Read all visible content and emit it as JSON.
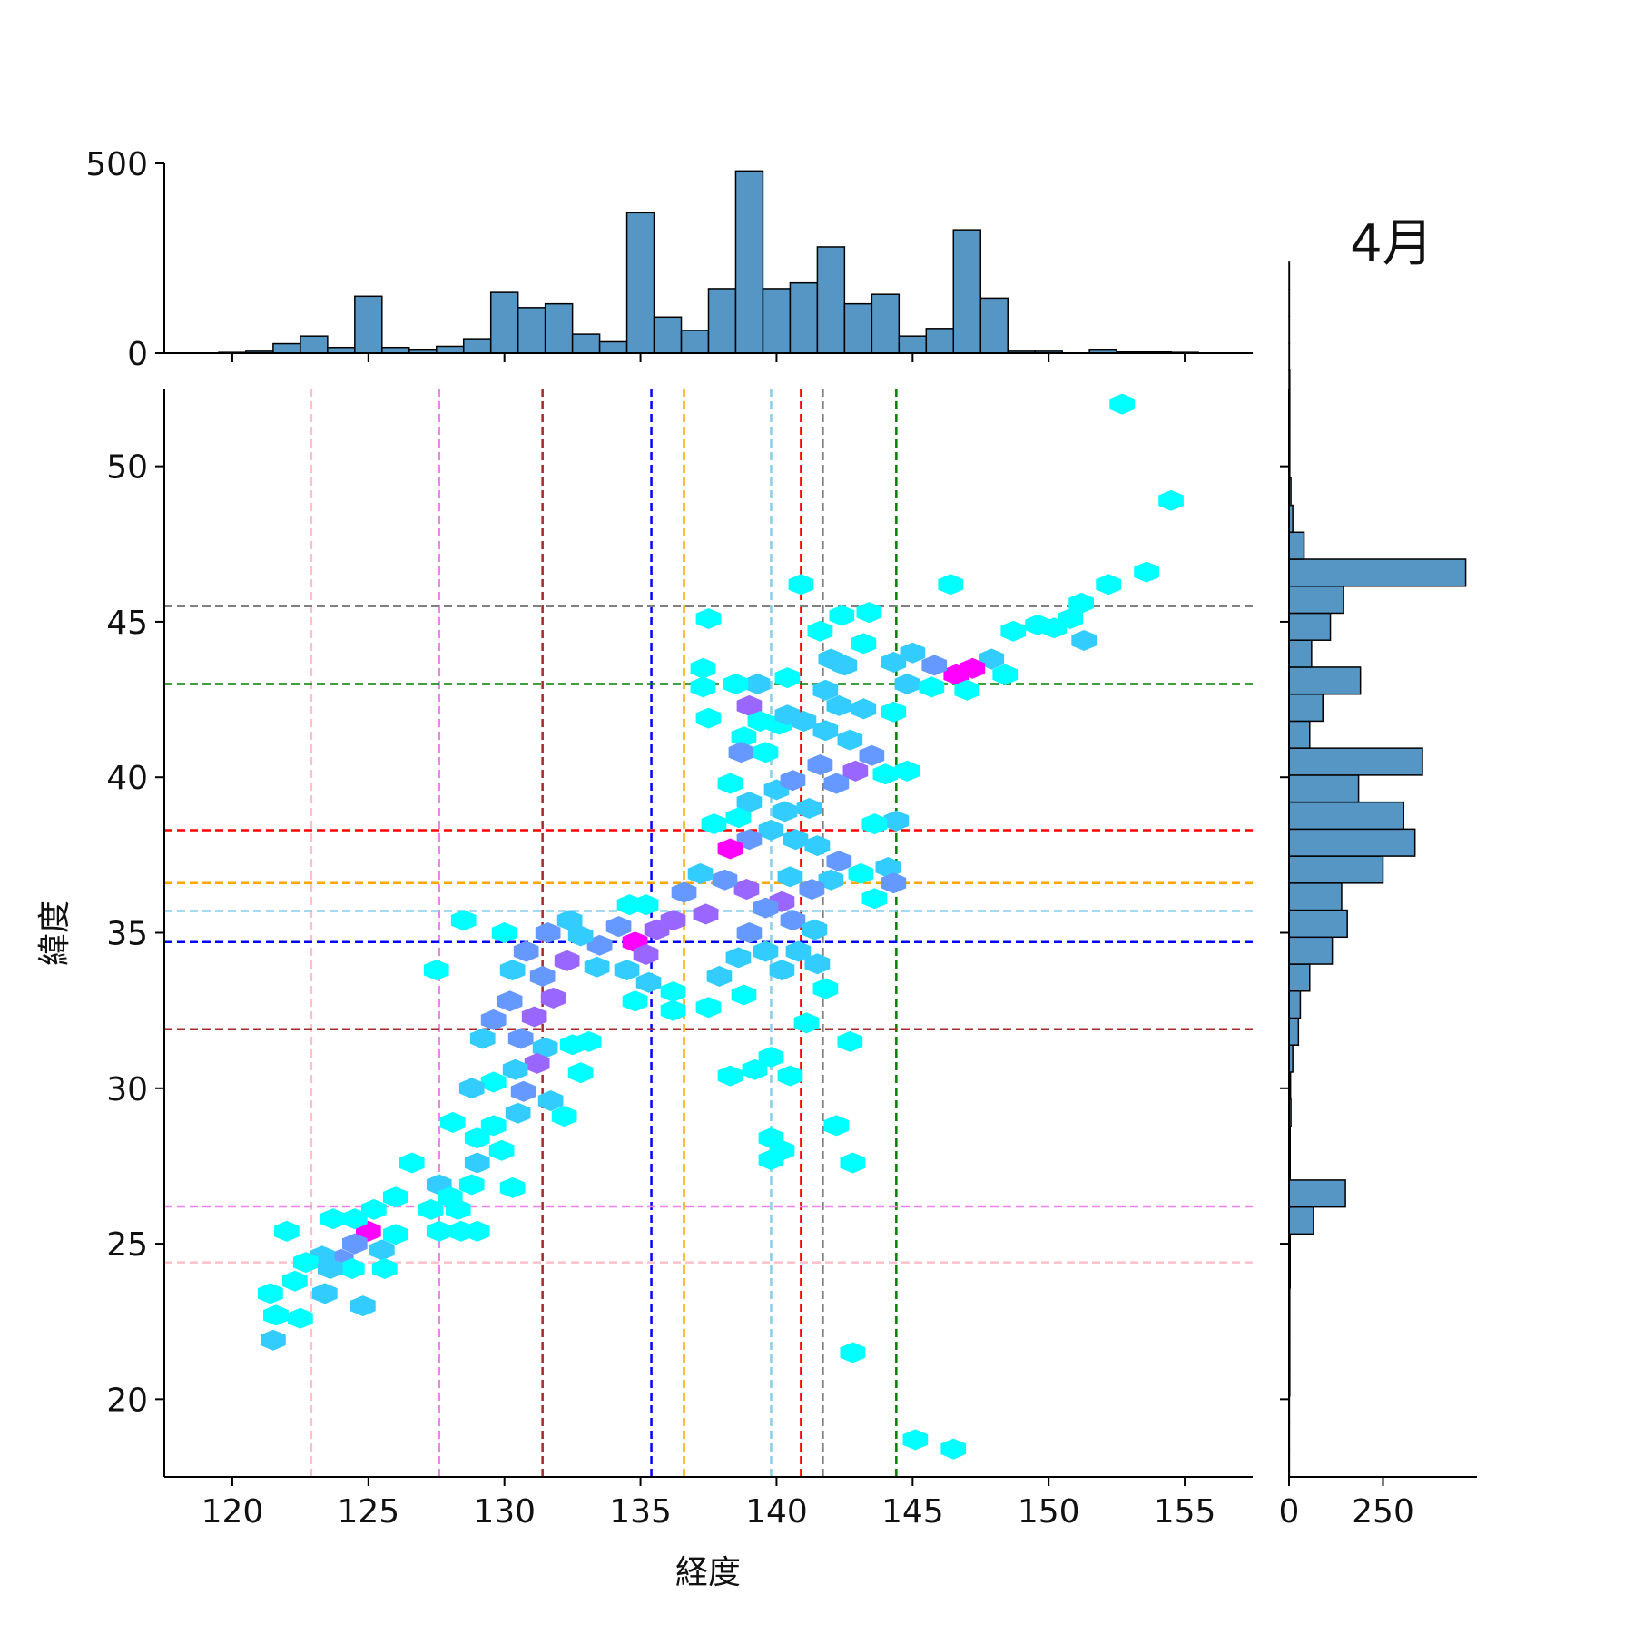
{
  "chart_data": {
    "type": "hexbin",
    "title": "",
    "annotation": "4月",
    "xlabel": "経度",
    "ylabel": "緯度",
    "xlim": [
      117.5,
      157.5
    ],
    "ylim": [
      17.5,
      52.5
    ],
    "xticks": [
      120,
      125,
      130,
      135,
      140,
      145,
      150,
      155
    ],
    "yticks": [
      20,
      25,
      30,
      35,
      40,
      45,
      50
    ],
    "hexbin_colors": [
      "#00ffff",
      "#33ccff",
      "#6699ff",
      "#9966ff",
      "#ff00ff"
    ],
    "hexbin_cells": [
      [
        152.7,
        52.0,
        1
      ],
      [
        154.5,
        48.9,
        1
      ],
      [
        153.6,
        46.6,
        1
      ],
      [
        152.2,
        46.2,
        1
      ],
      [
        151.2,
        45.6,
        1
      ],
      [
        150.8,
        45.1,
        1
      ],
      [
        150.2,
        44.8,
        1
      ],
      [
        149.6,
        44.9,
        1
      ],
      [
        151.3,
        44.4,
        2
      ],
      [
        148.7,
        44.7,
        1
      ],
      [
        147.9,
        43.8,
        2
      ],
      [
        147.2,
        43.5,
        5
      ],
      [
        146.6,
        43.3,
        5
      ],
      [
        145.8,
        43.6,
        3
      ],
      [
        145.0,
        44.0,
        2
      ],
      [
        144.3,
        43.7,
        2
      ],
      [
        144.8,
        43.0,
        2
      ],
      [
        145.7,
        42.9,
        1
      ],
      [
        147.0,
        42.8,
        1
      ],
      [
        148.4,
        43.3,
        1
      ],
      [
        146.4,
        46.2,
        1
      ],
      [
        144.3,
        42.1,
        1
      ],
      [
        144.0,
        40.1,
        1
      ],
      [
        144.8,
        40.2,
        1
      ],
      [
        144.4,
        38.6,
        2
      ],
      [
        143.6,
        38.5,
        1
      ],
      [
        143.5,
        40.7,
        3
      ],
      [
        142.9,
        40.2,
        4
      ],
      [
        142.2,
        39.8,
        3
      ],
      [
        141.6,
        40.4,
        3
      ],
      [
        141.2,
        39.0,
        2
      ],
      [
        142.7,
        41.2,
        2
      ],
      [
        141.8,
        41.5,
        2
      ],
      [
        141.0,
        41.8,
        2
      ],
      [
        142.3,
        42.3,
        2
      ],
      [
        143.2,
        42.2,
        2
      ],
      [
        141.8,
        42.8,
        2
      ],
      [
        142.5,
        43.6,
        2
      ],
      [
        143.2,
        44.3,
        1
      ],
      [
        142.0,
        43.8,
        2
      ],
      [
        141.6,
        44.7,
        1
      ],
      [
        142.4,
        45.2,
        1
      ],
      [
        143.4,
        45.3,
        1
      ],
      [
        140.9,
        46.2,
        1
      ],
      [
        140.4,
        43.2,
        1
      ],
      [
        139.3,
        43.0,
        2
      ],
      [
        139.0,
        42.3,
        4
      ],
      [
        138.8,
        41.3,
        1
      ],
      [
        138.7,
        40.8,
        3
      ],
      [
        139.6,
        40.8,
        1
      ],
      [
        140.1,
        41.7,
        1
      ],
      [
        140.4,
        42.0,
        2
      ],
      [
        139.4,
        41.8,
        1
      ],
      [
        138.3,
        39.8,
        1
      ],
      [
        139.0,
        39.2,
        2
      ],
      [
        138.6,
        38.7,
        1
      ],
      [
        137.7,
        38.5,
        1
      ],
      [
        140.0,
        39.6,
        2
      ],
      [
        140.6,
        39.9,
        3
      ],
      [
        140.3,
        38.9,
        2
      ],
      [
        139.8,
        38.3,
        2
      ],
      [
        139.0,
        38.0,
        3
      ],
      [
        138.3,
        37.7,
        5
      ],
      [
        140.7,
        38.0,
        2
      ],
      [
        141.5,
        37.8,
        2
      ],
      [
        142.3,
        37.3,
        3
      ],
      [
        143.1,
        36.9,
        1
      ],
      [
        144.1,
        37.1,
        2
      ],
      [
        144.3,
        36.6,
        3
      ],
      [
        143.6,
        36.1,
        1
      ],
      [
        142.0,
        36.7,
        2
      ],
      [
        141.3,
        36.4,
        3
      ],
      [
        140.5,
        36.8,
        2
      ],
      [
        140.2,
        36.0,
        4
      ],
      [
        139.6,
        35.8,
        3
      ],
      [
        138.9,
        36.4,
        4
      ],
      [
        138.1,
        36.7,
        3
      ],
      [
        137.2,
        36.9,
        2
      ],
      [
        136.6,
        36.3,
        3
      ],
      [
        137.4,
        35.6,
        4
      ],
      [
        136.2,
        35.4,
        4
      ],
      [
        135.6,
        35.1,
        4
      ],
      [
        134.8,
        34.7,
        5
      ],
      [
        135.2,
        34.3,
        4
      ],
      [
        134.2,
        35.2,
        3
      ],
      [
        133.5,
        34.6,
        3
      ],
      [
        132.8,
        34.9,
        2
      ],
      [
        133.4,
        33.9,
        2
      ],
      [
        134.5,
        33.8,
        2
      ],
      [
        135.3,
        33.4,
        2
      ],
      [
        136.2,
        33.1,
        1
      ],
      [
        134.8,
        32.8,
        1
      ],
      [
        137.9,
        33.6,
        2
      ],
      [
        138.6,
        34.2,
        2
      ],
      [
        137.5,
        32.6,
        1
      ],
      [
        136.2,
        32.5,
        1
      ],
      [
        139.0,
        35.0,
        3
      ],
      [
        140.6,
        35.4,
        3
      ],
      [
        141.4,
        35.1,
        2
      ],
      [
        140.8,
        34.4,
        2
      ],
      [
        141.5,
        34.0,
        2
      ],
      [
        140.2,
        33.8,
        2
      ],
      [
        139.6,
        34.4,
        2
      ],
      [
        138.8,
        33.0,
        1
      ],
      [
        141.8,
        33.2,
        1
      ],
      [
        141.1,
        32.1,
        1
      ],
      [
        142.7,
        31.5,
        1
      ],
      [
        139.8,
        31.0,
        1
      ],
      [
        139.2,
        30.6,
        1
      ],
      [
        138.3,
        30.4,
        1
      ],
      [
        140.5,
        30.4,
        1
      ],
      [
        142.2,
        28.8,
        1
      ],
      [
        139.8,
        28.4,
        1
      ],
      [
        140.2,
        28.0,
        1
      ],
      [
        139.8,
        27.7,
        1
      ],
      [
        142.8,
        27.6,
        1
      ],
      [
        142.8,
        21.5,
        1
      ],
      [
        145.1,
        18.7,
        1
      ],
      [
        146.5,
        18.4,
        1
      ],
      [
        132.4,
        35.4,
        2
      ],
      [
        131.6,
        35.0,
        3
      ],
      [
        130.8,
        34.4,
        3
      ],
      [
        130.3,
        33.8,
        2
      ],
      [
        131.4,
        33.6,
        3
      ],
      [
        132.3,
        34.1,
        4
      ],
      [
        131.8,
        32.9,
        4
      ],
      [
        131.1,
        32.3,
        4
      ],
      [
        130.2,
        32.8,
        3
      ],
      [
        129.6,
        32.2,
        3
      ],
      [
        130.6,
        31.6,
        3
      ],
      [
        131.5,
        31.3,
        2
      ],
      [
        132.5,
        31.4,
        1
      ],
      [
        131.2,
        30.8,
        4
      ],
      [
        130.4,
        30.6,
        2
      ],
      [
        129.6,
        30.2,
        1
      ],
      [
        130.7,
        29.9,
        3
      ],
      [
        131.7,
        29.6,
        2
      ],
      [
        130.5,
        29.2,
        2
      ],
      [
        129.6,
        28.8,
        1
      ],
      [
        132.2,
        29.1,
        1
      ],
      [
        133.1,
        31.5,
        1
      ],
      [
        132.8,
        30.5,
        1
      ],
      [
        128.5,
        35.4,
        1
      ],
      [
        130.0,
        35.0,
        1
      ],
      [
        127.5,
        33.8,
        1
      ],
      [
        129.2,
        31.6,
        2
      ],
      [
        128.8,
        30.0,
        2
      ],
      [
        128.1,
        28.9,
        1
      ],
      [
        129.0,
        28.4,
        1
      ],
      [
        129.9,
        28.0,
        1
      ],
      [
        129.0,
        27.6,
        2
      ],
      [
        128.8,
        26.9,
        1
      ],
      [
        126.6,
        27.6,
        1
      ],
      [
        126.0,
        26.5,
        1
      ],
      [
        127.6,
        26.9,
        2
      ],
      [
        127.3,
        26.1,
        1
      ],
      [
        128.3,
        26.1,
        1
      ],
      [
        127.6,
        25.4,
        1
      ],
      [
        128.4,
        25.4,
        1
      ],
      [
        129.0,
        25.4,
        1
      ],
      [
        128.0,
        26.5,
        1
      ],
      [
        130.3,
        26.8,
        1
      ],
      [
        125.0,
        25.4,
        5
      ],
      [
        124.5,
        25.0,
        3
      ],
      [
        125.5,
        24.8,
        2
      ],
      [
        124.0,
        24.5,
        3
      ],
      [
        123.3,
        24.6,
        2
      ],
      [
        122.7,
        24.4,
        1
      ],
      [
        124.4,
        24.2,
        1
      ],
      [
        123.6,
        24.2,
        2
      ],
      [
        126.0,
        25.3,
        1
      ],
      [
        125.2,
        26.1,
        1
      ],
      [
        123.7,
        25.8,
        1
      ],
      [
        124.5,
        25.8,
        1
      ],
      [
        122.0,
        25.4,
        1
      ],
      [
        122.3,
        23.8,
        1
      ],
      [
        121.4,
        23.4,
        1
      ],
      [
        123.4,
        23.4,
        2
      ],
      [
        124.8,
        23.0,
        2
      ],
      [
        121.6,
        22.7,
        1
      ],
      [
        122.5,
        22.6,
        1
      ],
      [
        121.5,
        21.9,
        2
      ],
      [
        125.6,
        24.2,
        1
      ],
      [
        135.2,
        35.9,
        1
      ],
      [
        134.6,
        35.9,
        1
      ],
      [
        137.5,
        41.9,
        1
      ],
      [
        137.5,
        45.1,
        1
      ],
      [
        138.5,
        43.0,
        1
      ],
      [
        137.3,
        43.5,
        1
      ],
      [
        137.3,
        42.9,
        1
      ]
    ],
    "vlines": [
      {
        "x": 122.9,
        "color": "#ffc0cb"
      },
      {
        "x": 127.6,
        "color": "#ee82ee"
      },
      {
        "x": 131.4,
        "color": "#a52a2a"
      },
      {
        "x": 135.4,
        "color": "#0000ff"
      },
      {
        "x": 136.6,
        "color": "#ffa500"
      },
      {
        "x": 139.8,
        "color": "#87ceeb"
      },
      {
        "x": 140.9,
        "color": "#ff0000"
      },
      {
        "x": 141.7,
        "color": "#808080"
      },
      {
        "x": 144.4,
        "color": "#008000"
      }
    ],
    "hlines": [
      {
        "y": 45.5,
        "color": "#808080"
      },
      {
        "y": 43.0,
        "color": "#008000"
      },
      {
        "y": 38.3,
        "color": "#ff0000"
      },
      {
        "y": 36.6,
        "color": "#ffa500"
      },
      {
        "y": 35.7,
        "color": "#87ceeb"
      },
      {
        "y": 34.7,
        "color": "#0000ff"
      },
      {
        "y": 31.9,
        "color": "#a52a2a"
      },
      {
        "y": 26.2,
        "color": "#ee82ee"
      },
      {
        "y": 24.4,
        "color": "#ffc0cb"
      }
    ],
    "top_hist": {
      "bin_width": 1.0,
      "bin_start": 119.5,
      "ylim": [
        0,
        500
      ],
      "yticks": [
        0,
        500
      ],
      "counts": [
        2,
        5,
        25,
        45,
        15,
        150,
        15,
        8,
        18,
        38,
        160,
        120,
        130,
        50,
        30,
        370,
        95,
        60,
        170,
        480,
        170,
        185,
        280,
        130,
        155,
        45,
        65,
        325,
        145,
        5,
        5,
        0,
        8,
        3,
        3,
        2,
        0,
        0
      ],
      "color": "#5596c5"
    },
    "right_hist": {
      "bin_height": 0.868,
      "bin_start": 17.5,
      "xlim": [
        0,
        500
      ],
      "xticks": [
        0,
        250
      ],
      "counts": [
        1,
        1,
        1,
        2,
        2,
        2,
        2,
        3,
        3,
        65,
        150,
        3,
        3,
        5,
        4,
        10,
        25,
        30,
        55,
        115,
        155,
        140,
        250,
        335,
        305,
        185,
        355,
        55,
        90,
        190,
        60,
        110,
        145,
        470,
        40,
        10,
        5,
        2,
        2,
        2,
        2,
        1,
        1,
        1,
        1
      ],
      "color": "#5596c5"
    }
  }
}
